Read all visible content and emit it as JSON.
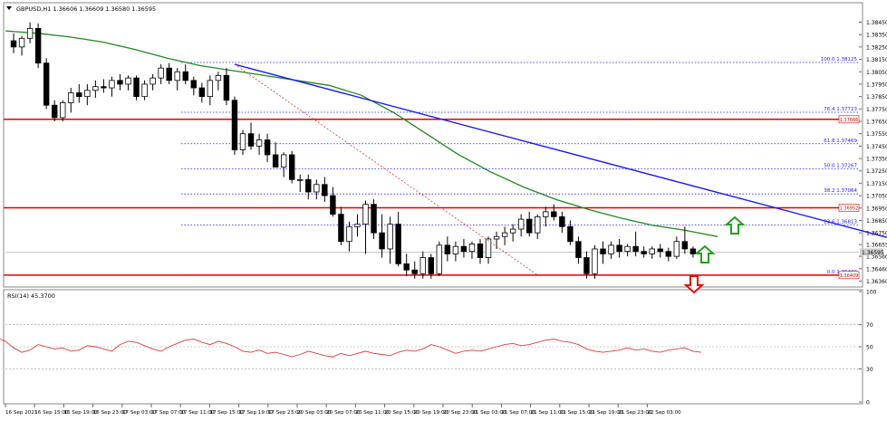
{
  "header": {
    "symbol_line": "GBPUSD,H1  1.36606 1.36609 1.36580 1.36595",
    "rsi_label": "RSI(14) 45.3700"
  },
  "colors": {
    "background": "#ffffff",
    "bull_candle": "#ffffff",
    "bear_candle": "#000000",
    "ma_line": "#1e8a1e",
    "trendline": "#1a1aff",
    "fib_line": "#1a1aff",
    "sr_line": "#e00000",
    "rsi_line": "#e03a3a",
    "arrow_up": "#22a022",
    "arrow_down": "#e01010"
  },
  "icons": {
    "arrows": [
      "arrow-up-icon",
      "arrow-up-icon",
      "arrow-down-icon"
    ]
  },
  "chart_data": {
    "type": "candlestick",
    "symbol": "GBPUSD",
    "timeframe": "H1",
    "ohlc_last": {
      "open": 1.36606,
      "high": 1.36609,
      "low": 1.3658,
      "close": 1.36595
    },
    "price_axis": {
      "ylim": [
        1.3632,
        1.386
      ],
      "ticks": [
        "1.38450",
        "1.38350",
        "1.38250",
        "1.38150",
        "1.38050",
        "1.37950",
        "1.37850",
        "1.37750",
        "1.37650",
        "1.37550",
        "1.37450",
        "1.37350",
        "1.37250",
        "1.37150",
        "1.37050",
        "1.36950",
        "1.36850",
        "1.36750",
        "1.36655",
        "1.36560",
        "1.36460",
        "1.36360"
      ],
      "current_price": "1.36595"
    },
    "time_axis": {
      "labels": [
        "16 Sep 2021",
        "16 Sep 15:00",
        "16 Sep 19:00",
        "16 Sep 23:00",
        "17 Sep 03:00",
        "17 Sep 07:00",
        "17 Sep 11:00",
        "17 Sep 15:00",
        "17 Sep 19:00",
        "17 Sep 23:00",
        "20 Sep 03:00",
        "20 Sep 07:00",
        "20 Sep 11:00",
        "20 Sep 15:00",
        "20 Sep 19:00",
        "20 Sep 23:00",
        "21 Sep 03:00",
        "21 Sep 07:00",
        "21 Sep 11:00",
        "21 Sep 15:00",
        "21 Sep 19:00",
        "21 Sep 23:00",
        "22 Sep 03:00"
      ]
    },
    "candles": [
      [
        1.383,
        1.3836,
        1.382,
        1.3825
      ],
      [
        1.3825,
        1.3834,
        1.3818,
        1.3832
      ],
      [
        1.3832,
        1.3845,
        1.3828,
        1.384
      ],
      [
        1.384,
        1.3844,
        1.3808,
        1.3812
      ],
      [
        1.3812,
        1.3816,
        1.3775,
        1.3778
      ],
      [
        1.3778,
        1.3782,
        1.3765,
        1.3768
      ],
      [
        1.3768,
        1.3782,
        1.3765,
        1.378
      ],
      [
        1.378,
        1.3792,
        1.3772,
        1.3788
      ],
      [
        1.3788,
        1.3795,
        1.378,
        1.3785
      ],
      [
        1.3785,
        1.3795,
        1.3778,
        1.379
      ],
      [
        1.379,
        1.3798,
        1.3784,
        1.3793
      ],
      [
        1.3793,
        1.3799,
        1.3788,
        1.3792
      ],
      [
        1.3792,
        1.3801,
        1.3785,
        1.3798
      ],
      [
        1.3798,
        1.3803,
        1.379,
        1.3795
      ],
      [
        1.3795,
        1.3802,
        1.379,
        1.38
      ],
      [
        1.38,
        1.3802,
        1.3782,
        1.3785
      ],
      [
        1.3785,
        1.3798,
        1.3782,
        1.3795
      ],
      [
        1.3795,
        1.3803,
        1.379,
        1.38
      ],
      [
        1.38,
        1.3811,
        1.3795,
        1.3808
      ],
      [
        1.3808,
        1.3812,
        1.3795,
        1.3798
      ],
      [
        1.3798,
        1.3808,
        1.379,
        1.3805
      ],
      [
        1.3805,
        1.3811,
        1.3795,
        1.3798
      ],
      [
        1.3798,
        1.3801,
        1.3786,
        1.3792
      ],
      [
        1.3792,
        1.3796,
        1.378,
        1.3785
      ],
      [
        1.3785,
        1.3802,
        1.3778,
        1.3798
      ],
      [
        1.3798,
        1.3805,
        1.379,
        1.3802
      ],
      [
        1.3802,
        1.3808,
        1.3778,
        1.3782
      ],
      [
        1.3782,
        1.3785,
        1.3738,
        1.3742
      ],
      [
        1.3742,
        1.3758,
        1.3738,
        1.3755
      ],
      [
        1.3755,
        1.3764,
        1.3742,
        1.3745
      ],
      [
        1.3745,
        1.3755,
        1.3738,
        1.375
      ],
      [
        1.375,
        1.3755,
        1.3732,
        1.3738
      ],
      [
        1.3738,
        1.3748,
        1.373,
        1.3728
      ],
      [
        1.3728,
        1.374,
        1.372,
        1.3738
      ],
      [
        1.3738,
        1.3741,
        1.3715,
        1.3718
      ],
      [
        1.3718,
        1.3722,
        1.3708,
        1.3718
      ],
      [
        1.3718,
        1.3722,
        1.3702,
        1.3708
      ],
      [
        1.3708,
        1.3718,
        1.3702,
        1.3714
      ],
      [
        1.3714,
        1.372,
        1.37,
        1.3705
      ],
      [
        1.3705,
        1.3712,
        1.3688,
        1.369
      ],
      [
        1.369,
        1.3696,
        1.3665,
        1.3668
      ],
      [
        1.3668,
        1.3684,
        1.366,
        1.368
      ],
      [
        1.368,
        1.369,
        1.3672,
        1.3682
      ],
      [
        1.3682,
        1.3701,
        1.3658,
        1.3698
      ],
      [
        1.3698,
        1.3702,
        1.367,
        1.3675
      ],
      [
        1.3675,
        1.369,
        1.3655,
        1.3662
      ],
      [
        1.3662,
        1.3688,
        1.365,
        1.3682
      ],
      [
        1.3682,
        1.3692,
        1.3648,
        1.365
      ],
      [
        1.365,
        1.3658,
        1.364,
        1.3645
      ],
      [
        1.3645,
        1.3652,
        1.3638,
        1.3642
      ],
      [
        1.3642,
        1.366,
        1.3638,
        1.3655
      ],
      [
        1.3655,
        1.3658,
        1.3638,
        1.3642
      ],
      [
        1.3642,
        1.3668,
        1.364,
        1.3665
      ],
      [
        1.3665,
        1.3672,
        1.3652,
        1.3658
      ],
      [
        1.3658,
        1.3668,
        1.3652,
        1.3664
      ],
      [
        1.3664,
        1.367,
        1.3655,
        1.366
      ],
      [
        1.366,
        1.3668,
        1.3654,
        1.3666
      ],
      [
        1.3666,
        1.367,
        1.365,
        1.3655
      ],
      [
        1.3655,
        1.3672,
        1.365,
        1.367
      ],
      [
        1.367,
        1.3676,
        1.3662,
        1.3672
      ],
      [
        1.3672,
        1.368,
        1.3665,
        1.3675
      ],
      [
        1.3675,
        1.3682,
        1.3668,
        1.3678
      ],
      [
        1.3678,
        1.369,
        1.3672,
        1.3686
      ],
      [
        1.3686,
        1.3692,
        1.3672,
        1.3675
      ],
      [
        1.3675,
        1.369,
        1.367,
        1.3688
      ],
      [
        1.3688,
        1.3696,
        1.368,
        1.3692
      ],
      [
        1.3692,
        1.3698,
        1.3685,
        1.3688
      ],
      [
        1.3688,
        1.3692,
        1.3675,
        1.368
      ],
      [
        1.368,
        1.3685,
        1.3665,
        1.3668
      ],
      [
        1.3668,
        1.3672,
        1.365,
        1.3655
      ],
      [
        1.3655,
        1.366,
        1.3638,
        1.3642
      ],
      [
        1.3642,
        1.3665,
        1.3638,
        1.3662
      ],
      [
        1.3662,
        1.3668,
        1.365,
        1.3658
      ],
      [
        1.3658,
        1.3668,
        1.3654,
        1.3665
      ],
      [
        1.3665,
        1.367,
        1.3655,
        1.366
      ],
      [
        1.366,
        1.3666,
        1.3656,
        1.3664
      ],
      [
        1.3664,
        1.3676,
        1.3656,
        1.366
      ],
      [
        1.366,
        1.3664,
        1.3655,
        1.3658
      ],
      [
        1.3658,
        1.3664,
        1.3654,
        1.3662
      ],
      [
        1.3662,
        1.3666,
        1.3655,
        1.366
      ],
      [
        1.366,
        1.3663,
        1.3652,
        1.3656
      ],
      [
        1.3656,
        1.3672,
        1.3654,
        1.3668
      ],
      [
        1.3668,
        1.368,
        1.3658,
        1.3662
      ],
      [
        1.3662,
        1.3664,
        1.3655,
        1.3658
      ],
      [
        1.36606,
        1.36609,
        1.3658,
        1.36595
      ]
    ],
    "moving_average": [
      1.3838,
      1.3836,
      1.3833,
      1.3829,
      1.3823,
      1.3816,
      1.381,
      1.3806,
      1.3802,
      1.3798,
      1.3794,
      1.3786,
      1.3772,
      1.3755,
      1.3738,
      1.3724,
      1.3712,
      1.3702,
      1.3694,
      1.3687,
      1.3681,
      1.3677,
      1.3672
    ],
    "horizontal_levels": [
      {
        "price": 1.37666,
        "label": "1.37666"
      },
      {
        "price": 1.36952,
        "label": "1.36952"
      },
      {
        "price": 1.36409,
        "label": "1.36409"
      }
    ],
    "fibonacci": [
      {
        "level": "100.0",
        "price": 1.38125,
        "label": "100.0  1.38125"
      },
      {
        "level": "76.4",
        "price": 1.37723,
        "label": "76.4  1.37723"
      },
      {
        "level": "61.8",
        "price": 1.37469,
        "label": "61.8  1.37469"
      },
      {
        "level": "50.0",
        "price": 1.37267,
        "label": "50.0  1.37267"
      },
      {
        "level": "38.2",
        "price": 1.37064,
        "label": "38.2  1.37064"
      },
      {
        "level": "23.6",
        "price": 1.36813,
        "label": "23.6  1.36813"
      },
      {
        "level": "0.0",
        "price": 1.36409,
        "label": "0.0  1.36409"
      }
    ],
    "trendline": {
      "from": [
        27,
        1.3811
      ],
      "to": [
        116,
        1.3655
      ]
    },
    "fib_diagonal": {
      "from": [
        27,
        1.3811
      ],
      "to": [
        64,
        1.3641
      ]
    },
    "rsi": {
      "period": 14,
      "value": 45.37,
      "ylim": [
        0,
        100
      ],
      "ticks": [
        "100",
        "70",
        "50",
        "30",
        "0"
      ],
      "levels": [
        70,
        50,
        30
      ],
      "values": [
        48,
        50,
        58,
        55,
        49,
        45,
        47,
        52,
        50,
        48,
        49,
        46,
        47,
        51,
        50,
        48,
        46,
        52,
        55,
        54,
        51,
        48,
        46,
        50,
        53,
        56,
        57,
        54,
        52,
        55,
        53,
        50,
        46,
        45,
        47,
        44,
        45,
        43,
        41,
        43,
        46,
        44,
        42,
        41,
        44,
        42,
        44,
        46,
        44,
        43,
        42,
        45,
        47,
        46,
        48,
        52,
        50,
        47,
        44,
        46,
        47,
        46,
        48,
        50,
        52,
        53,
        51,
        52,
        54,
        56,
        57,
        55,
        54,
        52,
        48,
        46,
        45,
        46,
        47,
        49,
        47,
        48,
        46,
        45,
        47,
        48,
        49,
        46,
        45
      ]
    }
  }
}
